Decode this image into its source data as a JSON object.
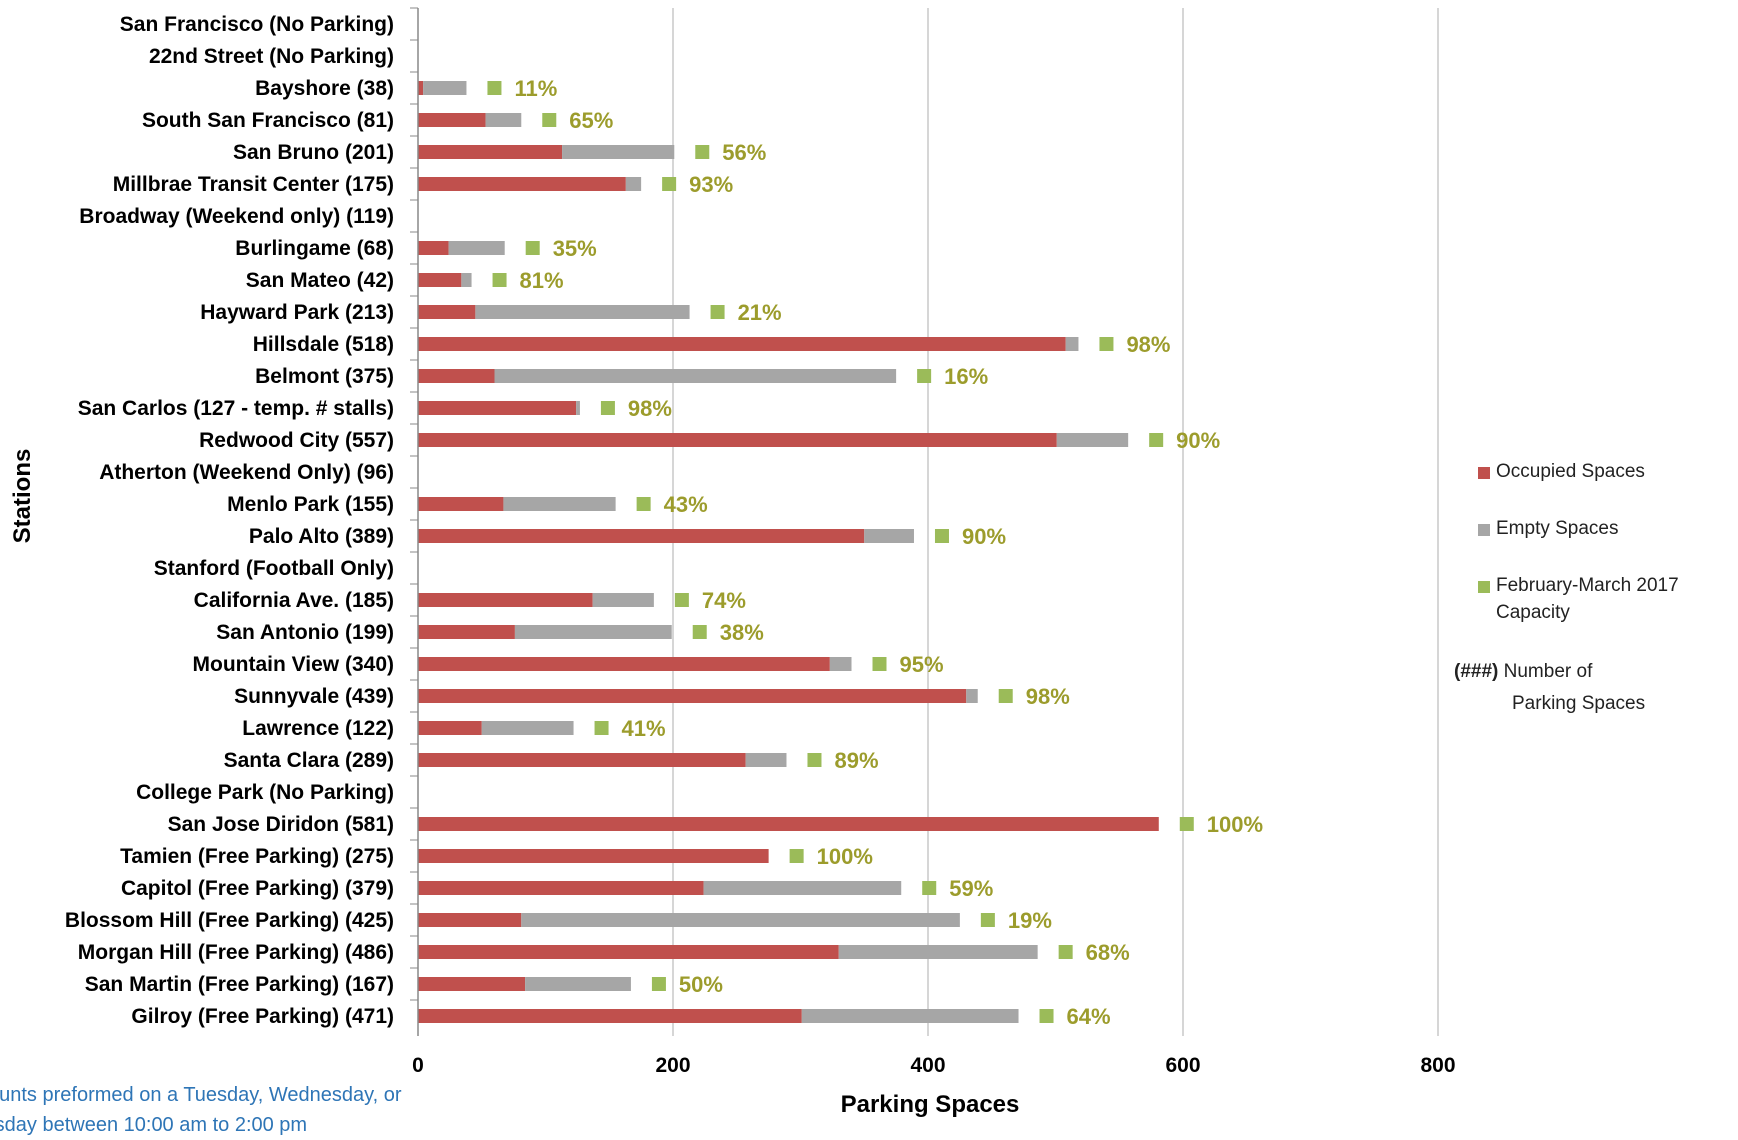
{
  "chart_data": {
    "type": "bar",
    "orientation": "horizontal",
    "stacked": true,
    "xlabel": "Parking Spaces",
    "ylabel": "Stations",
    "xlim": [
      0,
      800
    ],
    "xticks": [
      "0",
      "200",
      "400",
      "600",
      "800"
    ],
    "grid": true,
    "legend_position": "right",
    "categories": [
      "San Francisco (No Parking)",
      "22nd Street (No Parking)",
      "Bayshore  (38)",
      "South San Francisco  (81)",
      "San Bruno  (201)",
      "Millbrae Transit Center  (175)",
      "Broadway (Weekend only) (119)",
      "Burlingame  (68)",
      "San Mateo  (42)",
      "Hayward Park  (213)",
      "Hillsdale  (518)",
      "Belmont  (375)",
      "San Carlos  (127 - temp. # stalls)",
      "Redwood City  (557)",
      "Atherton (Weekend Only) (96)",
      "Menlo Park  (155)",
      "Palo Alto  (389)",
      "Stanford (Football Only)",
      "California Ave.  (185)",
      "San Antonio  (199)",
      "Mountain View  (340)",
      "Sunnyvale  (439)",
      "Lawrence  (122)",
      "Santa Clara  (289)",
      "College Park (No Parking)",
      "San Jose Diridon  (581)",
      "Tamien (Free Parking) (275)",
      "Capitol (Free Parking) (379)",
      "Blossom Hill (Free Parking) (425)",
      "Morgan Hill (Free Parking) (486)",
      "San Martin (Free Parking) (167)",
      "Gilroy (Free Parking) (471)"
    ],
    "series": [
      {
        "name": "Occupied Spaces",
        "color": "#c0504d",
        "values": [
          null,
          null,
          4,
          53,
          113,
          163,
          null,
          24,
          34,
          45,
          508,
          60,
          124,
          501,
          null,
          67,
          350,
          null,
          137,
          76,
          323,
          430,
          50,
          257,
          null,
          581,
          275,
          224,
          81,
          330,
          84,
          301
        ]
      },
      {
        "name": "Empty Spaces",
        "color": "#a6a6a6",
        "values": [
          null,
          null,
          34,
          28,
          88,
          12,
          null,
          44,
          8,
          168,
          10,
          315,
          3,
          56,
          null,
          88,
          39,
          null,
          48,
          123,
          17,
          9,
          72,
          32,
          null,
          0,
          0,
          155,
          344,
          156,
          83,
          170
        ]
      }
    ],
    "capacity": {
      "name": "February-March 2017 Capacity",
      "color": "#9bbb59",
      "labels": [
        "",
        "",
        "11%",
        "65%",
        "56%",
        "93%",
        "",
        "35%",
        "81%",
        "21%",
        "98%",
        "16%",
        "98%",
        "90%",
        "",
        "43%",
        "90%",
        "",
        "74%",
        "38%",
        "95%",
        "98%",
        "41%",
        "89%",
        "",
        "100%",
        "100%",
        "59%",
        "19%",
        "68%",
        "50%",
        "64%"
      ]
    },
    "legend_note": {
      "marker": "(###)",
      "text_line1": "Number of",
      "text_line2": "Parking Spaces"
    }
  },
  "footnote": {
    "line1": "ounts preformed on a Tuesday, Wednesday, or",
    "line2": "rsday between 10:00 am to 2:00 pm"
  }
}
